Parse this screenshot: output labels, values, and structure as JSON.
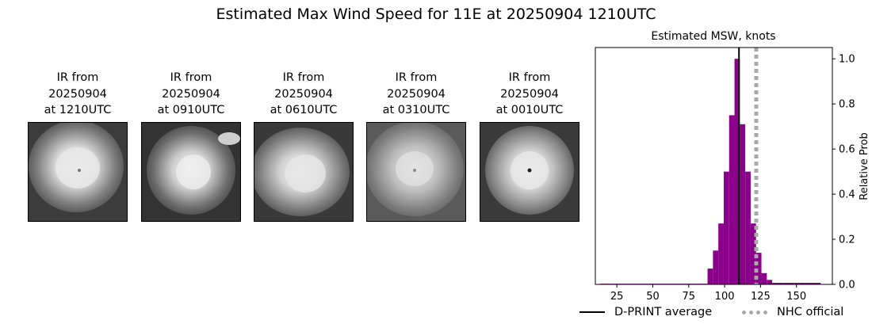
{
  "page": {
    "title": "Estimated Max Wind Speed for 11E at 20250904 1210UTC"
  },
  "panels": [
    {
      "line1": "IR from",
      "line2": "20250904",
      "line3": "at 1210UTC"
    },
    {
      "line1": "IR from",
      "line2": "20250904",
      "line3": "at 0910UTC"
    },
    {
      "line1": "IR from",
      "line2": "20250904",
      "line3": "at 0610UTC"
    },
    {
      "line1": "IR from",
      "line2": "20250904",
      "line3": "at 0310UTC"
    },
    {
      "line1": "IR from",
      "line2": "20250904",
      "line3": "at 0010UTC"
    }
  ],
  "legend": {
    "dprint_label": "D-PRINT average",
    "nhc_label": "NHC official"
  },
  "colors": {
    "bars": "#8b008b",
    "dprint_line": "#000000",
    "nhc_line": "#a9a9a9"
  },
  "chart_data": {
    "type": "bar",
    "title": "Estimated MSW, knots",
    "xlabel": "",
    "ylabel": "Relative Prob",
    "xlim": [
      10,
      175
    ],
    "ylim": [
      0,
      1.05
    ],
    "x_ticks": [
      25,
      50,
      75,
      100,
      125,
      150
    ],
    "y_ticks": [
      0.0,
      0.2,
      0.4,
      0.6,
      0.8,
      1.0
    ],
    "y_axis_side": "right",
    "bin_width": 3.75,
    "bars": [
      {
        "x": 15,
        "value": 0.003
      },
      {
        "x": 18.75,
        "value": 0.003
      },
      {
        "x": 22.5,
        "value": 0.003
      },
      {
        "x": 26.25,
        "value": 0.003
      },
      {
        "x": 30,
        "value": 0.003
      },
      {
        "x": 33.75,
        "value": 0.003
      },
      {
        "x": 37.5,
        "value": 0.003
      },
      {
        "x": 41.25,
        "value": 0.003
      },
      {
        "x": 45,
        "value": 0.003
      },
      {
        "x": 48.75,
        "value": 0.003
      },
      {
        "x": 52.5,
        "value": 0.003
      },
      {
        "x": 56.25,
        "value": 0.003
      },
      {
        "x": 60,
        "value": 0.003
      },
      {
        "x": 63.75,
        "value": 0.003
      },
      {
        "x": 67.5,
        "value": 0.003
      },
      {
        "x": 71.25,
        "value": 0.003
      },
      {
        "x": 75,
        "value": 0.003
      },
      {
        "x": 78.75,
        "value": 0.003
      },
      {
        "x": 82.5,
        "value": 0.003
      },
      {
        "x": 86.25,
        "value": 0.003
      },
      {
        "x": 90,
        "value": 0.07
      },
      {
        "x": 93.75,
        "value": 0.15
      },
      {
        "x": 97.5,
        "value": 0.27
      },
      {
        "x": 101.25,
        "value": 0.5
      },
      {
        "x": 105,
        "value": 0.75
      },
      {
        "x": 108.75,
        "value": 1.0
      },
      {
        "x": 112.5,
        "value": 0.71
      },
      {
        "x": 116.25,
        "value": 0.5
      },
      {
        "x": 120,
        "value": 0.27
      },
      {
        "x": 123.75,
        "value": 0.14
      },
      {
        "x": 127.5,
        "value": 0.05
      },
      {
        "x": 131.25,
        "value": 0.02
      },
      {
        "x": 135,
        "value": 0.007
      },
      {
        "x": 138.75,
        "value": 0.007
      },
      {
        "x": 142.5,
        "value": 0.007
      },
      {
        "x": 146.25,
        "value": 0.007
      },
      {
        "x": 150,
        "value": 0.007
      },
      {
        "x": 153.75,
        "value": 0.007
      },
      {
        "x": 157.5,
        "value": 0.007
      },
      {
        "x": 161.25,
        "value": 0.007
      },
      {
        "x": 165,
        "value": 0.007
      }
    ],
    "dprint_average": 110,
    "nhc_official": 122,
    "legend_placement": "bottom"
  }
}
